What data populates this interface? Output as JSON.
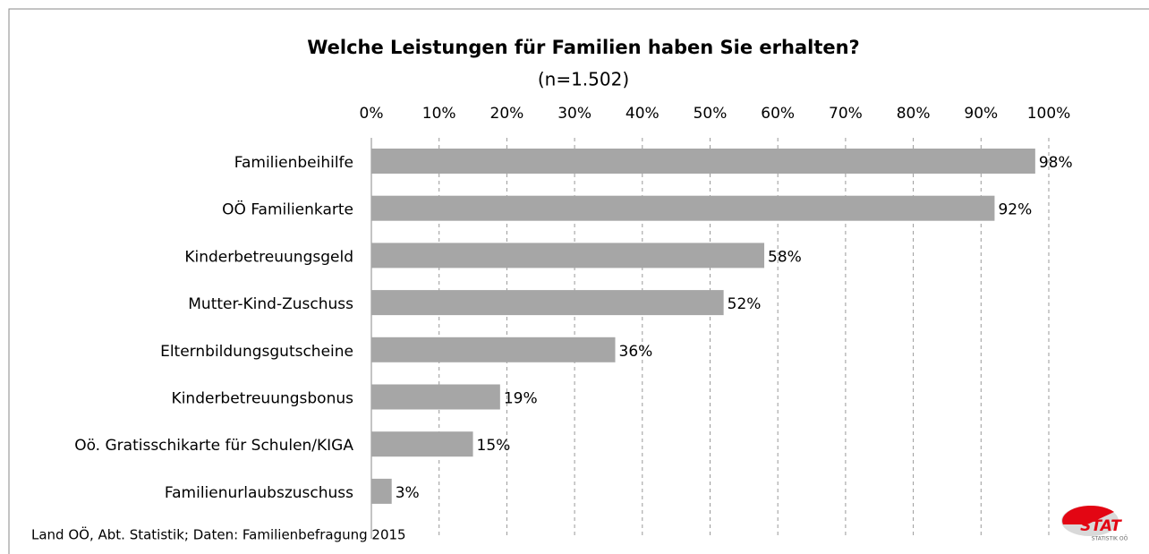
{
  "chart_data": {
    "type": "bar",
    "orientation": "horizontal",
    "title": "Welche Leistungen für Familien haben Sie erhalten?",
    "subtitle": "(n=1.502)",
    "categories": [
      "Familienbeihilfe",
      "OÖ Familienkarte",
      "Kinderbetreuungsgeld",
      "Mutter-Kind-Zuschuss",
      "Elternbildungsgutscheine",
      "Kinderbetreuungsbonus",
      "Oö. Gratisschikarte für Schulen/KIGA",
      "Familienurlaubszuschuss"
    ],
    "values": [
      98,
      92,
      58,
      52,
      36,
      19,
      15,
      3
    ],
    "value_labels": [
      "98%",
      "92%",
      "58%",
      "52%",
      "36%",
      "19%",
      "15%",
      "3%"
    ],
    "color": "#a6a6a6",
    "xlim": [
      0,
      100
    ],
    "xticks": [
      {
        "value": 0,
        "label": "0%"
      },
      {
        "value": 10,
        "label": "10%"
      },
      {
        "value": 20,
        "label": "20%"
      },
      {
        "value": 30,
        "label": "30%"
      },
      {
        "value": 40,
        "label": "40%"
      },
      {
        "value": 50,
        "label": "50%"
      },
      {
        "value": 60,
        "label": "60%"
      },
      {
        "value": 70,
        "label": "70%"
      },
      {
        "value": 80,
        "label": "80%"
      },
      {
        "value": 90,
        "label": "90%"
      },
      {
        "value": 100,
        "label": "100%"
      }
    ],
    "grid": true
  },
  "footer": {
    "source": "Land OÖ, Abt. Statistik; Daten: Familienbefragung 2015"
  },
  "logo": {
    "text": "STAT",
    "subtext": "STATISTIK OÖ"
  }
}
